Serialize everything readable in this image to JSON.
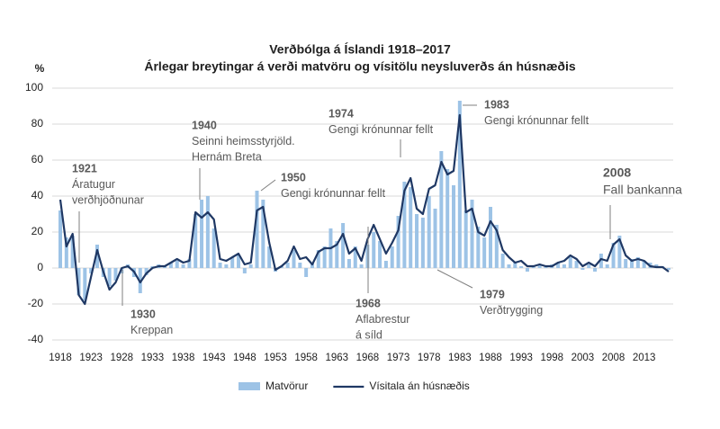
{
  "chart_data": {
    "type": "bar-line",
    "title": "Verðbólga á Íslandi 1918–2017",
    "subtitle": "Árlegar breytingar á verði matvöru og vísitölu neysluverðs án húsnæðis",
    "y_label": "%",
    "x": [
      1918,
      1919,
      1920,
      1921,
      1922,
      1923,
      1924,
      1925,
      1926,
      1927,
      1928,
      1929,
      1930,
      1931,
      1932,
      1933,
      1934,
      1935,
      1936,
      1937,
      1938,
      1939,
      1940,
      1941,
      1942,
      1943,
      1944,
      1945,
      1946,
      1947,
      1948,
      1949,
      1950,
      1951,
      1952,
      1953,
      1954,
      1955,
      1956,
      1957,
      1958,
      1959,
      1960,
      1961,
      1962,
      1963,
      1964,
      1965,
      1966,
      1967,
      1968,
      1969,
      1970,
      1971,
      1972,
      1973,
      1974,
      1975,
      1976,
      1977,
      1978,
      1979,
      1980,
      1981,
      1982,
      1983,
      1984,
      1985,
      1986,
      1987,
      1988,
      1989,
      1990,
      1991,
      1992,
      1993,
      1994,
      1995,
      1996,
      1997,
      1998,
      1999,
      2000,
      2001,
      2002,
      2003,
      2004,
      2005,
      2006,
      2007,
      2008,
      2009,
      2010,
      2011,
      2012,
      2013,
      2014,
      2015,
      2016,
      2017
    ],
    "series": [
      {
        "name": "Matvörur",
        "type": "bar",
        "color": "#9dc3e6",
        "values": [
          32,
          17,
          18,
          -15,
          -18,
          -3,
          13,
          -5,
          -10,
          -7,
          -3,
          2,
          -5,
          -14,
          -4,
          1,
          2,
          1,
          3,
          4,
          2,
          5,
          30,
          38,
          40,
          22,
          3,
          2,
          6,
          7,
          -3,
          2,
          43,
          38,
          12,
          -2,
          1,
          3,
          10,
          3,
          -5,
          3,
          10,
          12,
          22,
          15,
          25,
          5,
          12,
          2,
          13,
          20,
          15,
          4,
          12,
          29,
          48,
          45,
          30,
          28,
          40,
          33,
          65,
          55,
          46,
          93,
          32,
          38,
          23,
          17,
          34,
          24,
          8,
          2,
          3,
          1,
          -2,
          1,
          2,
          1,
          2,
          3,
          2,
          6,
          4,
          -1,
          2,
          -2,
          8,
          2,
          14,
          18,
          5,
          5,
          6,
          4,
          3,
          2,
          1,
          -1
        ]
      },
      {
        "name": "Vísitala án húsnæðis",
        "type": "line",
        "color": "#1f3864",
        "values": [
          38,
          12,
          19,
          -15,
          -20,
          -5,
          10,
          -2,
          -12,
          -8,
          0,
          1,
          -2,
          -8,
          -3,
          0,
          1,
          1,
          3,
          5,
          3,
          4,
          31,
          28,
          31,
          27,
          5,
          4,
          6,
          8,
          2,
          3,
          32,
          34,
          14,
          -1,
          1,
          4,
          12,
          5,
          6,
          2,
          9,
          11,
          11,
          13,
          19,
          8,
          11,
          4,
          16,
          24,
          16,
          8,
          14,
          21,
          43,
          50,
          33,
          30,
          44,
          46,
          59,
          52,
          54,
          85,
          31,
          33,
          20,
          18,
          26,
          21,
          10,
          6,
          3,
          4,
          1,
          1,
          2,
          1,
          1,
          3,
          4,
          7,
          5,
          1,
          3,
          1,
          5,
          4,
          13,
          16,
          7,
          4,
          5,
          4,
          1,
          0.5,
          0.5,
          -2
        ]
      }
    ],
    "xlim": [
      1918,
      2017
    ],
    "xticks": [
      1918,
      1923,
      1928,
      1933,
      1938,
      1943,
      1948,
      1953,
      1958,
      1963,
      1968,
      1973,
      1978,
      1983,
      1988,
      1993,
      1998,
      2003,
      2008,
      2013
    ],
    "ylim": [
      -40,
      100
    ],
    "yticks": [
      -40,
      -20,
      0,
      20,
      40,
      60,
      80,
      100
    ],
    "grid": true,
    "legend": "bottom",
    "annotations": [
      {
        "year": "1921",
        "text": [
          "Áratugur",
          "verðhjöðnunar"
        ]
      },
      {
        "year": "1930",
        "text": [
          "Kreppan"
        ]
      },
      {
        "year": "1940",
        "text": [
          "Seinni heimsstyrjöld.",
          "Hernám Breta"
        ]
      },
      {
        "year": "1950",
        "text": [
          "Gengi krónunnar fellt"
        ]
      },
      {
        "year": "1974",
        "text": [
          "Gengi krónunnar fellt"
        ]
      },
      {
        "year": "1983",
        "text": [
          "Gengi krónunnar fellt"
        ]
      },
      {
        "year": "1968",
        "text": [
          "Aflabrestur",
          "á síld"
        ]
      },
      {
        "year": "1979",
        "text": [
          "Verðtrygging"
        ]
      },
      {
        "year": "2008",
        "text": [
          "Fall bankanna"
        ]
      }
    ]
  }
}
